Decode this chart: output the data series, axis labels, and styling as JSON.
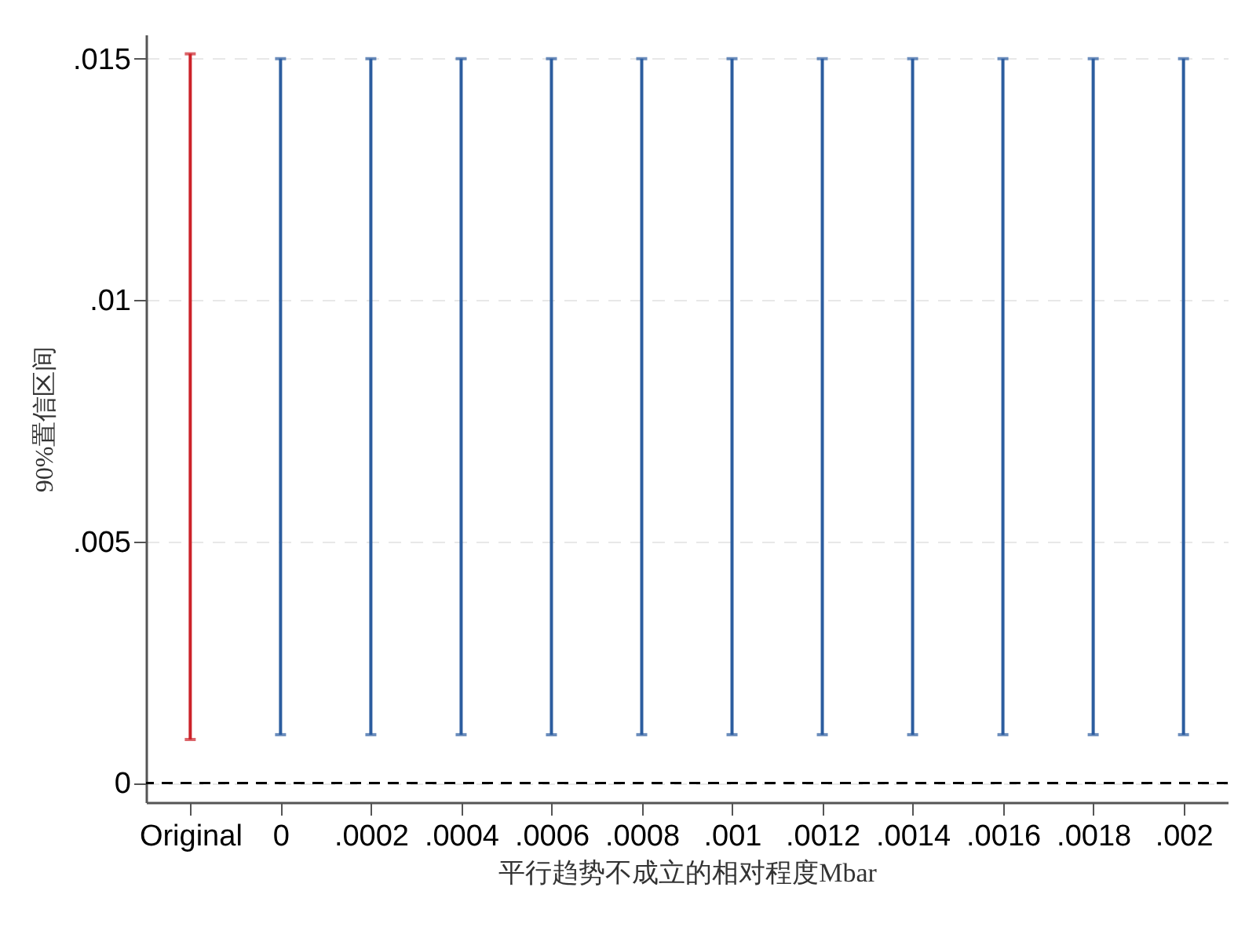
{
  "chart_data": {
    "type": "bar",
    "categories": [
      "Original",
      "0",
      ".0002",
      ".0004",
      ".0006",
      ".0008",
      ".001",
      ".0012",
      ".0014",
      ".0016",
      ".0018",
      ".002"
    ],
    "base": [
      0.0009,
      0.001,
      0.001,
      0.001,
      0.001,
      0.001,
      0.001,
      0.001,
      0.001,
      0.001,
      0.001,
      0.001
    ],
    "values": [
      0.0142,
      0.014,
      0.014,
      0.014,
      0.014,
      0.014,
      0.014,
      0.014,
      0.014,
      0.014,
      0.014,
      0.014
    ],
    "colors": [
      "#cc2229",
      "#2c5d9f",
      "#2c5d9f",
      "#2c5d9f",
      "#2c5d9f",
      "#2c5d9f",
      "#2c5d9f",
      "#2c5d9f",
      "#2c5d9f",
      "#2c5d9f",
      "#2c5d9f",
      "#2c5d9f"
    ],
    "xlabel": "平行趋势不成立的相对程度Mbar",
    "ylabel": "90%置信区间",
    "ylim": [
      -0.0004,
      0.0155
    ],
    "yticks": [
      0,
      {
        "value": 0.005,
        "label": ".005"
      },
      {
        "value": 0.01,
        "label": ".01"
      },
      {
        "value": 0.015,
        "label": ".015"
      }
    ],
    "grid": "y",
    "legend": false,
    "ref_lines": [
      {
        "axis": "y",
        "value": 0,
        "color": "#000000",
        "line_style": "dashed"
      }
    ]
  }
}
